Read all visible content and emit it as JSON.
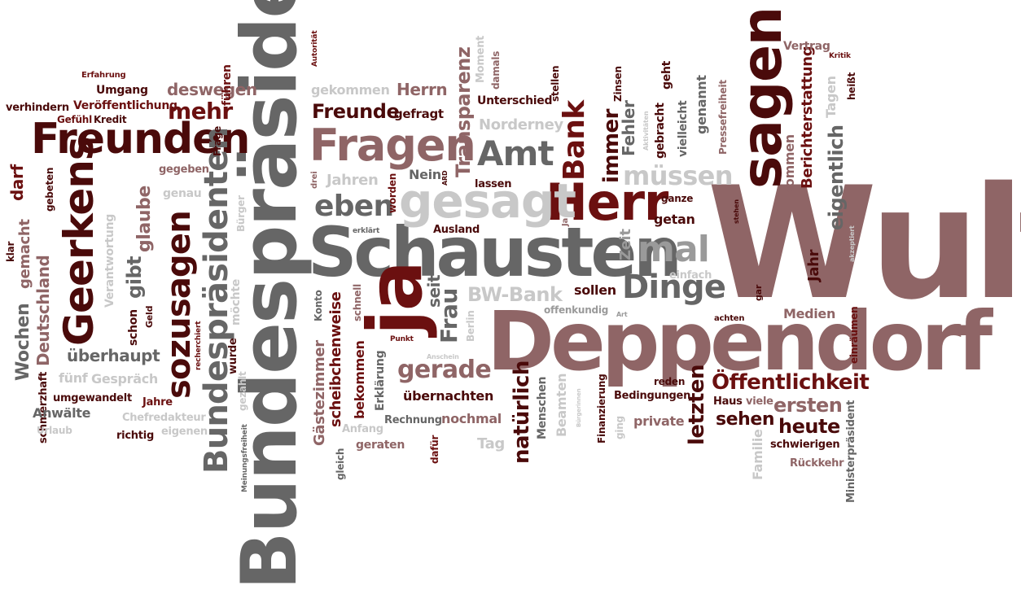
{
  "colors": {
    "dark_red": "#4a0a0a",
    "maroon": "#6b1010",
    "mauve": "#8f6566",
    "dark_gray": "#666666",
    "gray": "#9a9a9a",
    "light_gray": "#c8c8c8"
  },
  "words": {
    "wulff": "Wulff",
    "bundespraesident": "Bundespräsident",
    "deppendorf": "Deppendorf",
    "schausten": "Schausten",
    "ja": "ja",
    "sagen": "sagen",
    "herr": "Herr",
    "fragen": "Fragen",
    "gesagt": "gesagt",
    "freunden": "Freunden",
    "geerkens": "Geerkens",
    "bundespraesidenten": "Bundespräsidenten",
    "sozusagen": "sozusagen",
    "amt": "Amt",
    "mal": "mal",
    "dinge": "Dinge",
    "eben": "eben",
    "bank": "Bank",
    "muessen": "müssen",
    "immer": "immer",
    "oeffentlichkeit": "Öffentlichkeit",
    "gerade": "gerade",
    "freunde": "Freunde",
    "mehr": "mehr",
    "transparenz": "Transparenz",
    "frau": "Frau",
    "bw_bank": "BW-Bank",
    "natuerlich": "natürlich",
    "letzten": "letzten",
    "ersten": "ersten",
    "heute": "heute",
    "sehen": "sehen",
    "eigentlich": "eigentlich",
    "berichterstattung": "Berichterstattung",
    "deutschland": "Deutschland",
    "gibt": "gibt",
    "glaube": "glaube",
    "ueberhaupt": "überhaupt",
    "wochen": "Wochen",
    "scheibchenweise": "scheibchenweise",
    "gaestezimmer": "Gästezimmer",
    "herrn": "Herrn",
    "deswegen": "deswegen",
    "gekommen": "gekommen",
    "gefragt": "gefragt",
    "unterschied": "Unterschied",
    "norderney": "Norderney",
    "fehler": "Fehler",
    "jahren": "Jahren",
    "nein": "Nein",
    "seit": "seit",
    "sollen": "sollen",
    "getan": "getan",
    "zeit": "Zeit",
    "medien": "Medien",
    "jahr": "Jahr",
    "kommen": "kommen",
    "gemacht": "gemacht",
    "darf": "darf",
    "verantwortung": "Verantwortung",
    "schon": "schon",
    "umgang": "Umgang",
    "veroeffentlichung": "Veröffentlichung",
    "gefuehl": "Gefühl",
    "kredit": "Kredit",
    "verhindern": "verhindern",
    "erfahrung": "Erfahrung",
    "fuehren": "führen",
    "frage": "Frage",
    "gegeben": "gegeben",
    "genau": "genau",
    "buerger": "Bürger",
    "gebeten": "gebeten",
    "klar": "klar",
    "schmerzhaft": "schmerzhaft",
    "fuenf": "fünf",
    "gespraech": "Gespräch",
    "umgewandelt": "umgewandelt",
    "jahre": "Jahre",
    "anwaelte": "Anwälte",
    "chefredakteur": "Chefredakteur",
    "urlaub": "Urlaub",
    "richtig": "richtig",
    "eigenen": "eigenen",
    "geld": "Geld",
    "moechte": "möchte",
    "wurde": "wurde",
    "gezahlt": "gezahlt",
    "recherchiert": "recherchiert",
    "meinungsfreiheit": "Meinungsfreiheit",
    "autoritaet": "Autorität",
    "moment": "Moment",
    "damals": "damals",
    "stellen": "stellen",
    "zinsen": "Zinsen",
    "gebracht": "gebracht",
    "geht": "geht",
    "vielleicht": "vielleicht",
    "genannt": "genannt",
    "pressefreiheit": "Pressefreiheit",
    "vertrag": "Vertrag",
    "kritik": "Kritik",
    "tagen": "Tagen",
    "heisst": "heißt",
    "aktivitaeten": "Aktivitäten",
    "ganze": "ganze",
    "stehen": "stehen",
    "akzeptiert": "akzeptiert",
    "einfach": "einfach",
    "gar": "gar",
    "achten": "achten",
    "einraeumen": "einräumen",
    "drei": "drei",
    "ard": "ARD",
    "worden": "worden",
    "lassen": "lassen",
    "ausland": "Ausland",
    "konto": "Konto",
    "schnell": "schnell",
    "erklaert": "erklärt",
    "punkt": "Punkt",
    "anschein": "Anschein",
    "berlin": "Berlin",
    "bekommen": "bekommen",
    "erklaerung": "Erklärung",
    "uebernachten": "übernachten",
    "rechnung": "Rechnung",
    "nochmal": "nochmal",
    "anfang": "Anfang",
    "geraten": "geraten",
    "gleich": "gleich",
    "dafuer": "dafür",
    "tag": "Tag",
    "menschen": "Menschen",
    "beamten": "Beamten",
    "buergerinnen": "Bürgerinnen",
    "finanzierung": "Finanzierung",
    "ging": "ging",
    "offenkundig": "offenkundig",
    "art": "Art",
    "reden": "reden",
    "bedingungen": "Bedingungen",
    "private": "private",
    "haus": "Haus",
    "viele": "viele",
    "familie": "Familie",
    "schwierigen": "schwierigen",
    "rueckkehr": "Rückkehr",
    "ministerpraesident": "Ministerpräsident",
    "ja_small": "Ja"
  }
}
